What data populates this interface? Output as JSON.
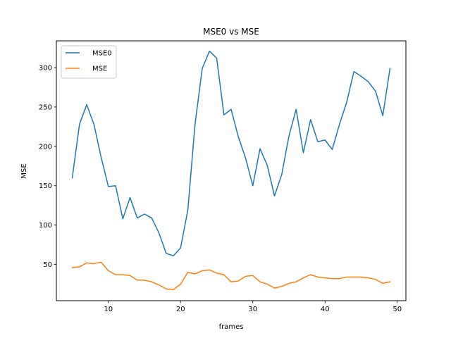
{
  "chart_data": {
    "type": "line",
    "title": "MSE0 vs MSE",
    "xlabel": "frames",
    "ylabel": "MSE",
    "xlim": [
      2.8,
      51.2
    ],
    "ylim": [
      4,
      334
    ],
    "xticks": [
      10,
      20,
      30,
      40,
      50
    ],
    "yticks": [
      50,
      100,
      150,
      200,
      250,
      300
    ],
    "grid": false,
    "legend_position": "upper-left",
    "x": [
      5,
      6,
      7,
      8,
      9,
      10,
      11,
      12,
      13,
      14,
      15,
      16,
      17,
      18,
      19,
      20,
      21,
      22,
      23,
      24,
      25,
      26,
      27,
      28,
      29,
      30,
      31,
      32,
      33,
      34,
      35,
      36,
      37,
      38,
      39,
      40,
      41,
      42,
      43,
      44,
      45,
      46,
      47,
      48,
      49
    ],
    "series": [
      {
        "name": "MSE0",
        "color": "#1f77b4",
        "values": [
          160,
          228,
          253,
          228,
          186,
          149,
          150,
          108,
          135,
          109,
          114,
          109,
          90,
          64,
          61,
          71,
          119,
          228,
          299,
          321,
          312,
          240,
          247,
          212,
          185,
          150,
          197,
          176,
          137,
          164,
          213,
          247,
          192,
          234,
          206,
          208,
          196,
          228,
          256,
          295,
          289,
          282,
          270,
          239,
          299
        ]
      },
      {
        "name": "MSE",
        "color": "#ff7f0e",
        "values": [
          46,
          47,
          52,
          51,
          53,
          42,
          37,
          37,
          36,
          30,
          30,
          28,
          24,
          19,
          18,
          25,
          40,
          38,
          42,
          43,
          39,
          37,
          28,
          29,
          35,
          36,
          28,
          25,
          20,
          22,
          26,
          28,
          33,
          37,
          34,
          33,
          32,
          32,
          34,
          34,
          34,
          33,
          31,
          26,
          28
        ]
      }
    ]
  }
}
